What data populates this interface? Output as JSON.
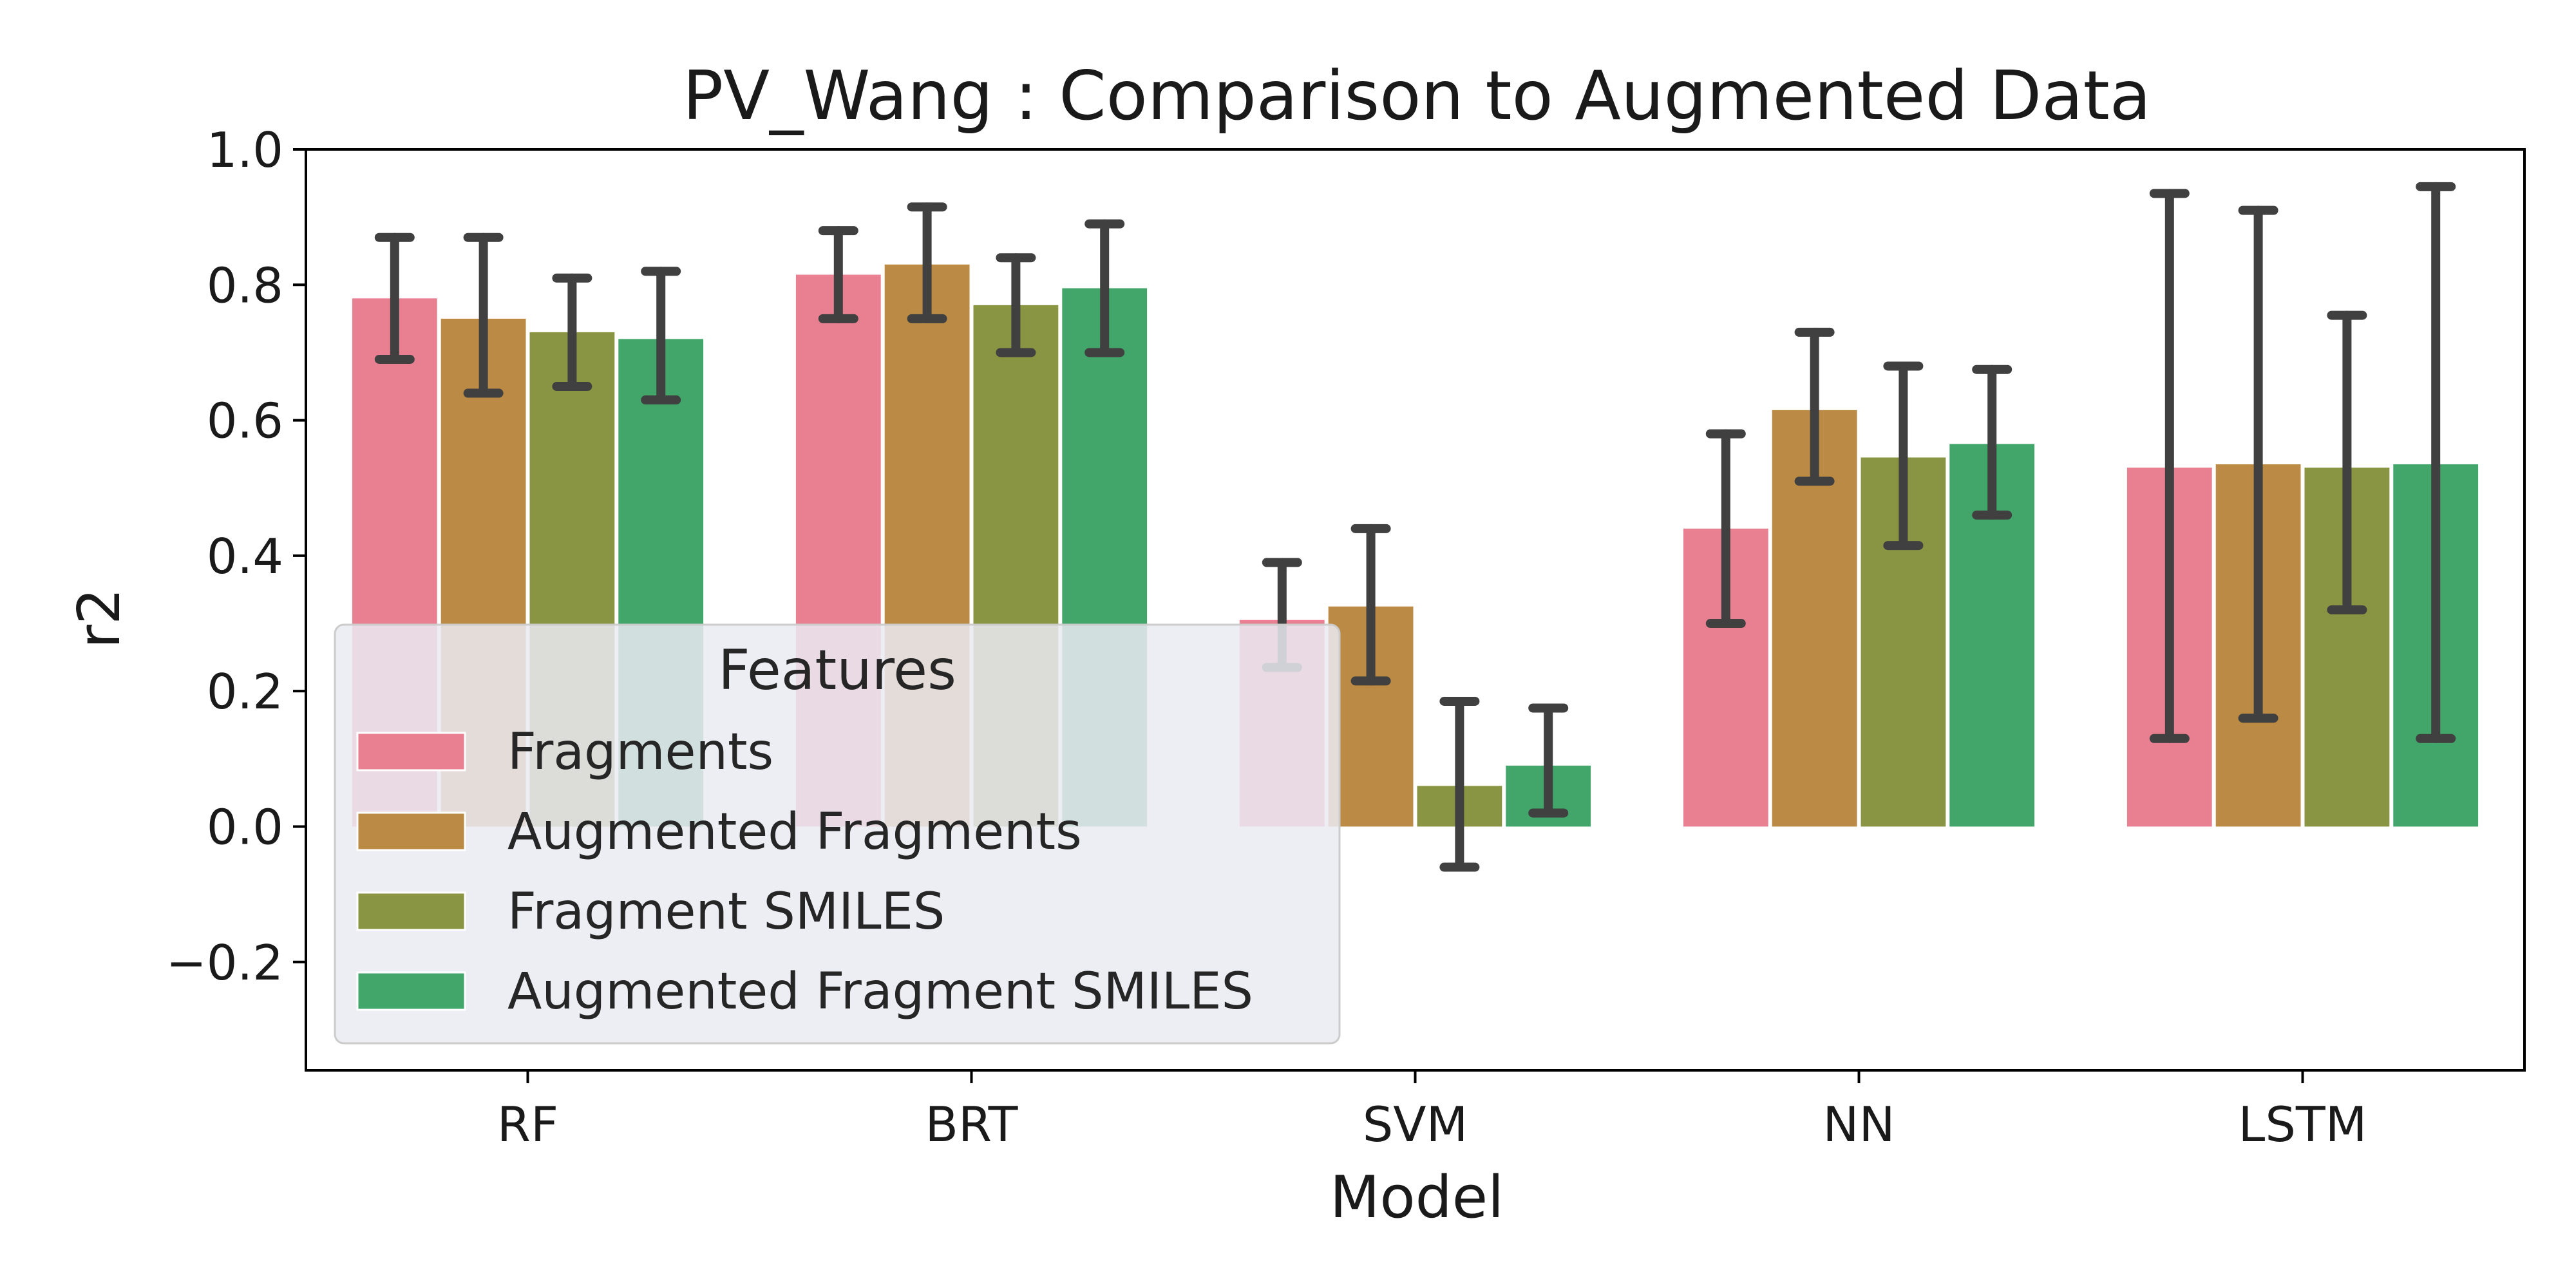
{
  "chart_data": {
    "type": "bar",
    "title": "PV_Wang : Comparison to Augmented Data",
    "xlabel": "Model",
    "ylabel": "r2",
    "ylim": [
      -0.36,
      1.0
    ],
    "yticks": [
      -0.2,
      0.0,
      0.2,
      0.4,
      0.6,
      0.8,
      1.0
    ],
    "ytick_labels": [
      "−0.2",
      "0.0",
      "0.2",
      "0.4",
      "0.6",
      "0.8",
      "1.0"
    ],
    "categories": [
      "RF",
      "BRT",
      "SVM",
      "NN",
      "LSTM"
    ],
    "grid": false,
    "legend": {
      "title": "Features",
      "placement": "lower-left"
    },
    "series": [
      {
        "name": "Fragments",
        "color": "#e88092",
        "values": [
          0.78,
          0.815,
          0.305,
          0.44,
          0.53
        ],
        "err_low": [
          0.69,
          0.75,
          0.235,
          0.3,
          0.13
        ],
        "err_high": [
          0.87,
          0.88,
          0.39,
          0.58,
          0.935
        ]
      },
      {
        "name": "Augmented Fragments",
        "color": "#bb8b46",
        "values": [
          0.75,
          0.83,
          0.325,
          0.615,
          0.535
        ],
        "err_low": [
          0.64,
          0.75,
          0.215,
          0.51,
          0.16
        ],
        "err_high": [
          0.87,
          0.915,
          0.44,
          0.73,
          0.91
        ]
      },
      {
        "name": "Fragment SMILES",
        "color": "#8a9543",
        "values": [
          0.73,
          0.77,
          0.06,
          0.545,
          0.53
        ],
        "err_low": [
          0.65,
          0.7,
          -0.06,
          0.415,
          0.32
        ],
        "err_high": [
          0.81,
          0.84,
          0.185,
          0.68,
          0.755
        ]
      },
      {
        "name": "Augmented Fragment SMILES",
        "color": "#42a56a",
        "values": [
          0.72,
          0.795,
          0.09,
          0.565,
          0.535
        ],
        "err_low": [
          0.63,
          0.7,
          0.02,
          0.46,
          0.13
        ],
        "err_high": [
          0.82,
          0.89,
          0.175,
          0.675,
          0.945
        ]
      }
    ]
  }
}
